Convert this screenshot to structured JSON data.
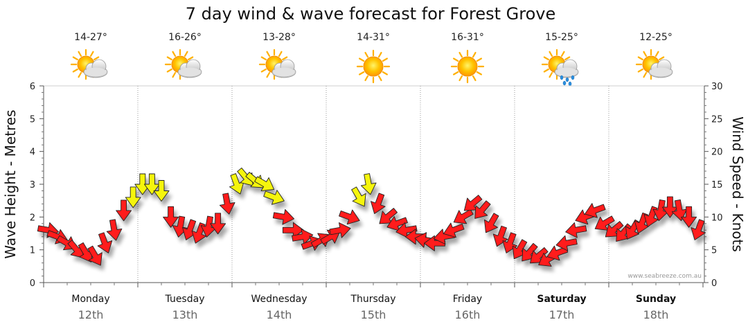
{
  "chart_data": {
    "type": "line",
    "title": "7 day wind & wave forecast for Forest Grove",
    "ylabel_left": "Wave Height - Metres",
    "ylabel_right": "Wind Speed - Knots",
    "ylim_left": [
      0,
      6
    ],
    "ylim_right": [
      0,
      30
    ],
    "yticks_left": [
      "0",
      "1",
      "2",
      "3",
      "4",
      "5",
      "6"
    ],
    "yticks_right": [
      "0",
      "5",
      "10",
      "15",
      "20",
      "25",
      "30"
    ],
    "watermark": "www.seabreeze.com.au",
    "days": [
      {
        "name": "Monday",
        "date": "12th",
        "temp": "14-27°",
        "icon": "partly-cloudy-icon",
        "bold": false
      },
      {
        "name": "Tuesday",
        "date": "13th",
        "temp": "16-26°",
        "icon": "partly-cloudy-icon",
        "bold": false
      },
      {
        "name": "Wednesday",
        "date": "14th",
        "temp": "13-28°",
        "icon": "partly-cloudy-icon",
        "bold": false
      },
      {
        "name": "Thursday",
        "date": "15th",
        "temp": "14-31°",
        "icon": "sunny-icon",
        "bold": false
      },
      {
        "name": "Friday",
        "date": "16th",
        "temp": "16-31°",
        "icon": "sunny-icon",
        "bold": false
      },
      {
        "name": "Saturday",
        "date": "17th",
        "temp": "15-25°",
        "icon": "partly-cloudy-shower-icon",
        "bold": true
      },
      {
        "name": "Sunday",
        "date": "18th",
        "temp": "12-25°",
        "icon": "partly-cloudy-icon",
        "bold": true
      }
    ],
    "wind_series": {
      "name": "Wind Speed (knots)",
      "colors": {
        "low": "#ff1a1a",
        "high": "#f5f50a"
      },
      "threshold": 12.5,
      "x": [
        -0.45,
        -0.35,
        -0.25,
        -0.15,
        -0.05,
        0.05,
        0.15,
        0.25,
        0.35,
        0.45,
        0.55,
        0.65,
        0.75,
        0.85,
        0.95,
        1.05,
        1.15,
        1.25,
        1.35,
        1.45,
        1.55,
        1.65,
        1.75,
        1.85,
        1.95,
        2.05,
        2.15,
        2.25,
        2.35,
        2.45,
        2.55,
        2.65,
        2.75,
        2.85,
        2.95,
        3.05,
        3.15,
        3.25,
        3.35,
        3.45,
        3.55,
        3.65,
        3.75,
        3.85,
        3.95,
        4.05,
        4.15,
        4.25,
        4.35,
        4.45,
        4.55,
        4.65,
        4.75,
        4.85,
        4.95,
        5.05,
        5.15,
        5.25,
        5.35,
        5.45,
        5.55,
        5.65,
        5.75,
        5.85,
        5.95,
        6.05,
        6.15,
        6.25,
        6.35,
        6.45
      ],
      "values": [
        8,
        7,
        6,
        5,
        4.5,
        4,
        6,
        8,
        11,
        13,
        15,
        15,
        14,
        10,
        8.5,
        8,
        7.5,
        8.5,
        9,
        12,
        15,
        16,
        15.5,
        15,
        13,
        10,
        8,
        7,
        6,
        6.5,
        7,
        8,
        10,
        13,
        15,
        12,
        10,
        9,
        8,
        7,
        6.5,
        6,
        7,
        8,
        10,
        12,
        11,
        9,
        7,
        6,
        5,
        4.5,
        4,
        3.5,
        4.5,
        6,
        8,
        10,
        11,
        9,
        8,
        7.5,
        8,
        9,
        10,
        11,
        11.5,
        11,
        10,
        8
      ],
      "direction_deg": [
        100,
        110,
        120,
        140,
        150,
        150,
        160,
        170,
        180,
        180,
        180,
        180,
        180,
        180,
        190,
        200,
        200,
        190,
        180,
        170,
        160,
        140,
        130,
        120,
        110,
        100,
        90,
        80,
        70,
        60,
        60,
        80,
        110,
        150,
        170,
        200,
        230,
        250,
        260,
        270,
        280,
        270,
        260,
        250,
        240,
        230,
        220,
        210,
        200,
        200,
        210,
        220,
        230,
        240,
        250,
        260,
        260,
        250,
        250,
        240,
        230,
        220,
        210,
        200,
        200,
        190,
        180,
        170,
        180,
        200
      ]
    }
  }
}
